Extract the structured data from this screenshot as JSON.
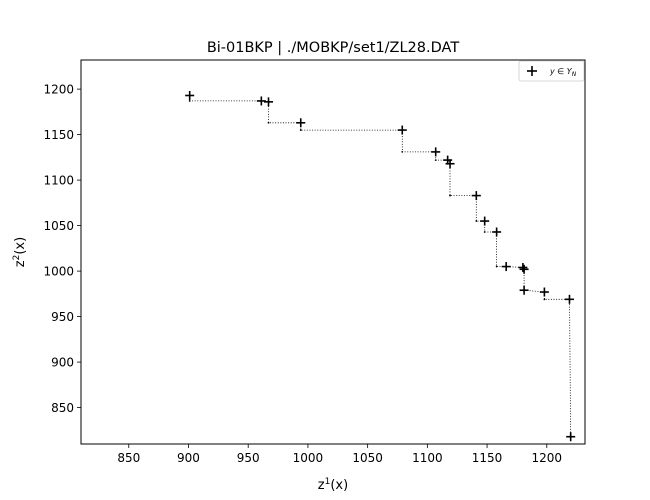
{
  "chart_data": {
    "type": "scatter",
    "title": "Bi-01BKP | ./MOBKP/set1/ZL28.DAT",
    "xlabel": "z^1(x)",
    "ylabel": "z^2(x)",
    "xlim": [
      810,
      1232
    ],
    "ylim": [
      810,
      1232
    ],
    "xticks": [
      850,
      900,
      950,
      1000,
      1050,
      1100,
      1150,
      1200
    ],
    "yticks": [
      850,
      900,
      950,
      1000,
      1050,
      1100,
      1150,
      1200
    ],
    "legend": {
      "placement": "top-right",
      "entries": [
        "y ∈ Y_N"
      ]
    },
    "grid": false,
    "series": [
      {
        "name": "y ∈ Y_N",
        "marker": "plus",
        "color": "#000000",
        "points": [
          [
            901,
            1193
          ],
          [
            961,
            1187
          ],
          [
            967,
            1186
          ],
          [
            994,
            1163
          ],
          [
            1079,
            1155
          ],
          [
            1107,
            1131
          ],
          [
            1117,
            1122
          ],
          [
            1119,
            1118
          ],
          [
            1141,
            1083
          ],
          [
            1148,
            1055
          ],
          [
            1158,
            1043
          ],
          [
            1166,
            1005
          ],
          [
            1180,
            1004
          ],
          [
            1181,
            1002
          ],
          [
            1181,
            979
          ],
          [
            1198,
            977
          ],
          [
            1219,
            969
          ],
          [
            1220,
            818
          ]
        ]
      }
    ],
    "staircase": {
      "style": "dotted",
      "points": [
        [
          901,
          1193
        ],
        [
          901,
          1187
        ],
        [
          961,
          1187
        ],
        [
          967,
          1186
        ],
        [
          967,
          1163
        ],
        [
          994,
          1163
        ],
        [
          994,
          1155
        ],
        [
          1079,
          1155
        ],
        [
          1079,
          1131
        ],
        [
          1107,
          1131
        ],
        [
          1107,
          1122
        ],
        [
          1117,
          1122
        ],
        [
          1119,
          1118
        ],
        [
          1119,
          1083
        ],
        [
          1141,
          1083
        ],
        [
          1141,
          1055
        ],
        [
          1148,
          1055
        ],
        [
          1148,
          1043
        ],
        [
          1158,
          1043
        ],
        [
          1158,
          1005
        ],
        [
          1166,
          1005
        ],
        [
          1180,
          1004
        ],
        [
          1181,
          1002
        ],
        [
          1181,
          979
        ],
        [
          1198,
          977
        ],
        [
          1198,
          969
        ],
        [
          1219,
          969
        ],
        [
          1220,
          818
        ]
      ]
    }
  }
}
